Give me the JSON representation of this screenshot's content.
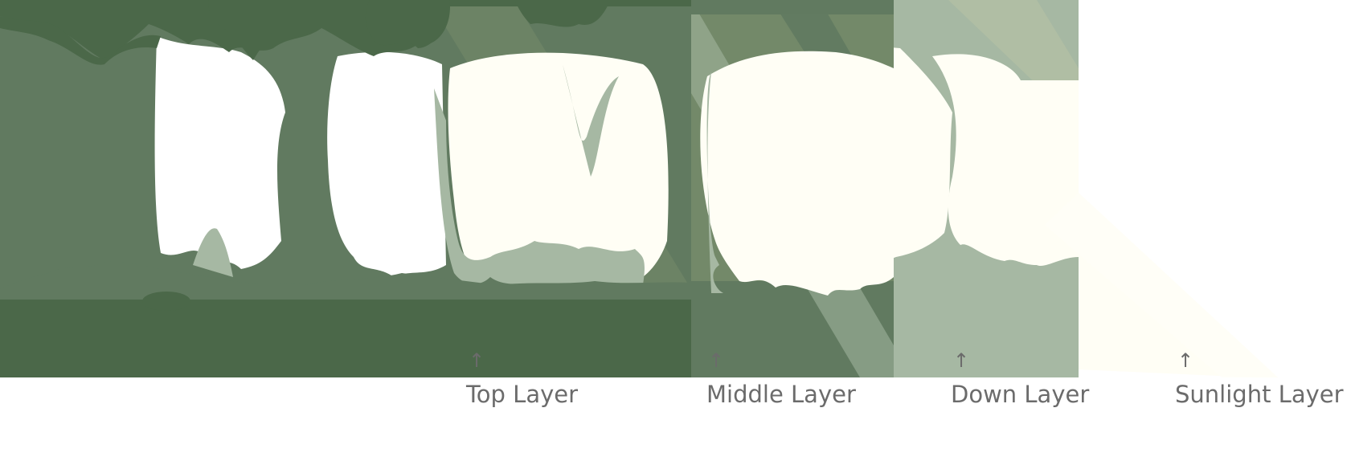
{
  "layers": [
    {
      "id": "top",
      "label": "Top Layer"
    },
    {
      "id": "middle",
      "label": "Middle Layer"
    },
    {
      "id": "down",
      "label": "Down Layer"
    },
    {
      "id": "sunlight",
      "label": "Sunlight Layer"
    }
  ],
  "arrow_glyph": "↑",
  "colors": {
    "top_dark": "#4b6849",
    "top_mid": "#617a60",
    "middle": "#738969",
    "down": "#a6b8a3",
    "down_light": "#b0bea4",
    "sunlight": "#fffef5"
  }
}
